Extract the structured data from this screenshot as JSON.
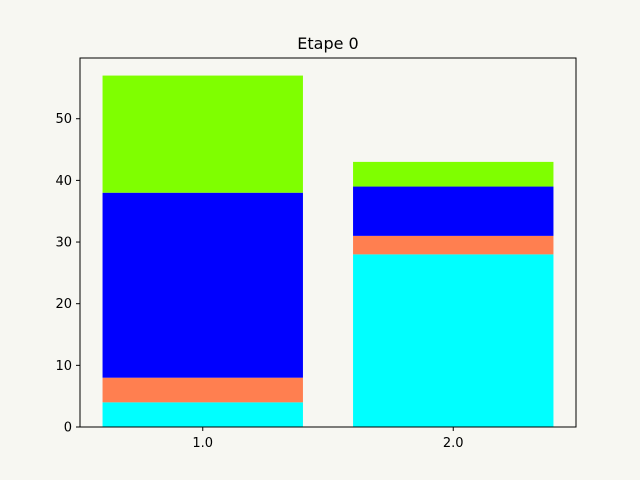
{
  "chart_data": {
    "type": "bar",
    "stacked": true,
    "title": "Etape 0",
    "xlabel": "",
    "ylabel": "",
    "categories": [
      "1.0",
      "2.0"
    ],
    "series": [
      {
        "color": "#00ffff",
        "values": [
          4,
          28
        ]
      },
      {
        "color": "#ff7f50",
        "values": [
          4,
          3
        ]
      },
      {
        "color": "#0000ff",
        "values": [
          30,
          8
        ]
      },
      {
        "color": "#7fff00",
        "values": [
          19,
          4
        ]
      }
    ],
    "y_ticks": [
      0,
      10,
      20,
      30,
      40,
      50
    ],
    "ylim": [
      0,
      59.85
    ],
    "grid": false,
    "legend": "none"
  },
  "colors": {
    "background": "#f7f7f2",
    "axes_face": "#f7f7f2",
    "axes_edge": "#000000"
  }
}
